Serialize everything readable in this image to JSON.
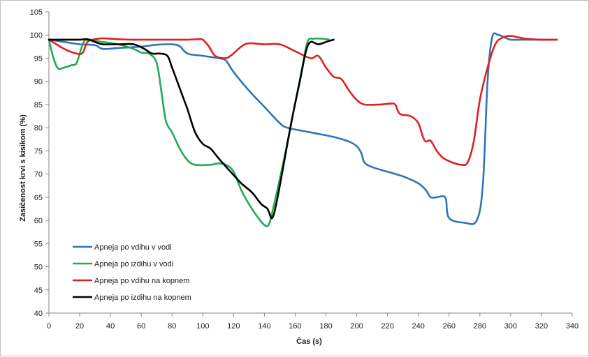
{
  "chart_data": {
    "type": "line",
    "xlabel": "Čas (s)",
    "ylabel": "Zasičenost  krvi s kisikom  (%)",
    "xlim": [
      0,
      340
    ],
    "ylim": [
      40,
      105
    ],
    "xticks": [
      0,
      20,
      40,
      60,
      80,
      100,
      120,
      140,
      160,
      180,
      200,
      220,
      240,
      260,
      280,
      300,
      320,
      340
    ],
    "yticks": [
      40,
      45,
      50,
      55,
      60,
      65,
      70,
      75,
      80,
      85,
      90,
      95,
      100,
      105
    ],
    "grid": false,
    "legend_position": "bottom-left",
    "series": [
      {
        "name": "Apneja po vdihu v vodi",
        "color": "#2e75b6",
        "points": [
          [
            0,
            99
          ],
          [
            10,
            98.5
          ],
          [
            20,
            98
          ],
          [
            30,
            97.8
          ],
          [
            35,
            97
          ],
          [
            45,
            97.2
          ],
          [
            60,
            97.5
          ],
          [
            70,
            97.9
          ],
          [
            80,
            98
          ],
          [
            85,
            97.6
          ],
          [
            90,
            96
          ],
          [
            100,
            95.5
          ],
          [
            110,
            95
          ],
          [
            115,
            94.5
          ],
          [
            120,
            92
          ],
          [
            130,
            88
          ],
          [
            140,
            84.5
          ],
          [
            150,
            81
          ],
          [
            155,
            80
          ],
          [
            170,
            79
          ],
          [
            185,
            78
          ],
          [
            195,
            77
          ],
          [
            200,
            76
          ],
          [
            203,
            74.5
          ],
          [
            205,
            72.5
          ],
          [
            210,
            71.5
          ],
          [
            220,
            70.5
          ],
          [
            230,
            69.5
          ],
          [
            240,
            68
          ],
          [
            245,
            66.5
          ],
          [
            248,
            65
          ],
          [
            252,
            65
          ],
          [
            256,
            65.2
          ],
          [
            258,
            64.5
          ],
          [
            260,
            60.5
          ],
          [
            270,
            59.5
          ],
          [
            278,
            60
          ],
          [
            282,
            68
          ],
          [
            285,
            90
          ],
          [
            288,
            99.5
          ],
          [
            292,
            100
          ],
          [
            296,
            99.5
          ],
          [
            300,
            99
          ],
          [
            310,
            99
          ],
          [
            320,
            99
          ],
          [
            330,
            99
          ]
        ]
      },
      {
        "name": "Apneja po izdihu v vodi",
        "color": "#22aa55",
        "points": [
          [
            0,
            99
          ],
          [
            3,
            95
          ],
          [
            6,
            92.8
          ],
          [
            10,
            93
          ],
          [
            15,
            93.5
          ],
          [
            18,
            94
          ],
          [
            22,
            98
          ],
          [
            25,
            99
          ],
          [
            35,
            98.5
          ],
          [
            45,
            98
          ],
          [
            55,
            97
          ],
          [
            60,
            96.2
          ],
          [
            65,
            96
          ],
          [
            70,
            94
          ],
          [
            73,
            88
          ],
          [
            76,
            81.5
          ],
          [
            80,
            79
          ],
          [
            85,
            75.5
          ],
          [
            90,
            73
          ],
          [
            95,
            72
          ],
          [
            105,
            72
          ],
          [
            110,
            72.3
          ],
          [
            115,
            72
          ],
          [
            120,
            70.5
          ],
          [
            125,
            66.5
          ],
          [
            130,
            63.5
          ],
          [
            135,
            61
          ],
          [
            140,
            59
          ],
          [
            143,
            59.2
          ],
          [
            146,
            63
          ],
          [
            152,
            72
          ],
          [
            158,
            82
          ],
          [
            164,
            92
          ],
          [
            168,
            98.5
          ],
          [
            172,
            99.2
          ],
          [
            178,
            99.2
          ],
          [
            182,
            99
          ]
        ]
      },
      {
        "name": "Apneja po vdihu na kopnem",
        "color": "#e02020",
        "points": [
          [
            0,
            99
          ],
          [
            10,
            97
          ],
          [
            18,
            96
          ],
          [
            22,
            96.2
          ],
          [
            25,
            98.5
          ],
          [
            30,
            99.1
          ],
          [
            35,
            99.3
          ],
          [
            45,
            99.1
          ],
          [
            55,
            99
          ],
          [
            70,
            99
          ],
          [
            80,
            99
          ],
          [
            90,
            99
          ],
          [
            97,
            99.1
          ],
          [
            100,
            99
          ],
          [
            104,
            97.5
          ],
          [
            108,
            95.5
          ],
          [
            114,
            95
          ],
          [
            118,
            95.5
          ],
          [
            125,
            97.5
          ],
          [
            130,
            98.2
          ],
          [
            140,
            98
          ],
          [
            150,
            98
          ],
          [
            160,
            96.5
          ],
          [
            170,
            95
          ],
          [
            175,
            95.5
          ],
          [
            180,
            93
          ],
          [
            185,
            91
          ],
          [
            190,
            90.5
          ],
          [
            195,
            88
          ],
          [
            200,
            86
          ],
          [
            205,
            85
          ],
          [
            215,
            85
          ],
          [
            222,
            85.2
          ],
          [
            225,
            85
          ],
          [
            228,
            83
          ],
          [
            235,
            82.5
          ],
          [
            240,
            81
          ],
          [
            243,
            78
          ],
          [
            245,
            77
          ],
          [
            248,
            77.2
          ],
          [
            252,
            75
          ],
          [
            256,
            73.5
          ],
          [
            262,
            72.5
          ],
          [
            268,
            72
          ],
          [
            272,
            72.5
          ],
          [
            276,
            77
          ],
          [
            280,
            86
          ],
          [
            285,
            93
          ],
          [
            290,
            98
          ],
          [
            295,
            99.5
          ],
          [
            300,
            99.8
          ],
          [
            305,
            99.5
          ],
          [
            310,
            99.2
          ],
          [
            320,
            99
          ],
          [
            330,
            99
          ]
        ]
      },
      {
        "name": "Apneja po izdihu na kopnem",
        "color": "#000000",
        "points": [
          [
            0,
            99
          ],
          [
            10,
            99
          ],
          [
            20,
            99
          ],
          [
            25,
            99.1
          ],
          [
            30,
            98.5
          ],
          [
            35,
            98
          ],
          [
            45,
            98
          ],
          [
            55,
            98
          ],
          [
            62,
            97
          ],
          [
            67,
            96
          ],
          [
            72,
            96
          ],
          [
            77,
            95.5
          ],
          [
            80,
            93
          ],
          [
            85,
            88.5
          ],
          [
            90,
            84
          ],
          [
            95,
            79
          ],
          [
            100,
            76.5
          ],
          [
            105,
            75.5
          ],
          [
            110,
            73.5
          ],
          [
            118,
            70.5
          ],
          [
            125,
            68
          ],
          [
            132,
            66
          ],
          [
            138,
            63.5
          ],
          [
            142,
            62.5
          ],
          [
            145,
            60.5
          ],
          [
            148,
            64
          ],
          [
            153,
            73
          ],
          [
            158,
            82
          ],
          [
            163,
            90
          ],
          [
            167,
            96.5
          ],
          [
            170,
            98.5
          ],
          [
            175,
            98
          ],
          [
            180,
            98.5
          ],
          [
            185,
            99
          ]
        ]
      }
    ]
  }
}
